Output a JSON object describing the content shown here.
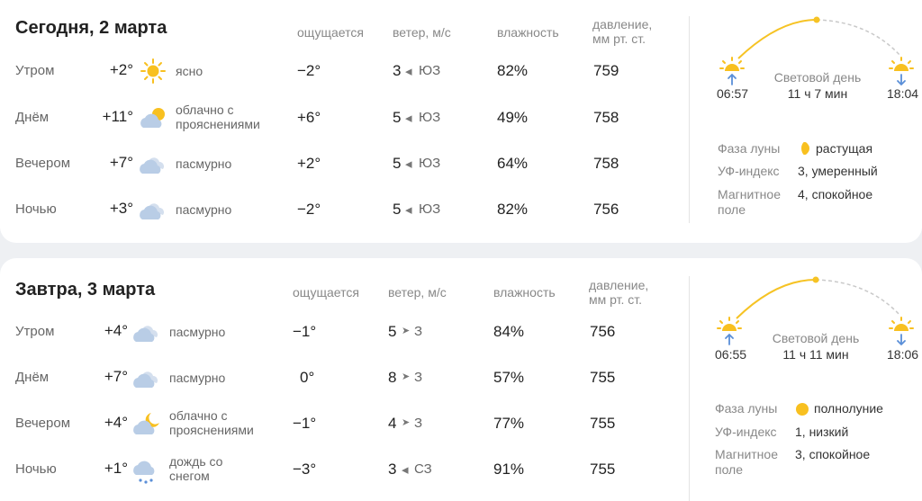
{
  "headers": {
    "feels": "ощущается",
    "wind": "ветер, м/с",
    "humidity": "влажность",
    "pressure_line1": "давление,",
    "pressure_line2": "мм рт. ст."
  },
  "days": [
    {
      "title": "Сегодня, 2 марта",
      "rows": [
        {
          "part": "Утром",
          "temp": "+2°",
          "icon": "sun-icon",
          "cond1": "ясно",
          "cond2": "",
          "feels": "−2°",
          "wind": "3",
          "dir_arrow": "◂",
          "dir": "ЮЗ",
          "humidity": "82%",
          "pressure": "759"
        },
        {
          "part": "Днём",
          "temp": "+11°",
          "icon": "cloud-sun-icon",
          "cond1": "облачно с",
          "cond2": "прояснениями",
          "feels": "+6°",
          "wind": "5",
          "dir_arrow": "◂",
          "dir": "ЮЗ",
          "humidity": "49%",
          "pressure": "758"
        },
        {
          "part": "Вечером",
          "temp": "+7°",
          "icon": "cloud-icon",
          "cond1": "пасмурно",
          "cond2": "",
          "feels": "+2°",
          "wind": "5",
          "dir_arrow": "◂",
          "dir": "ЮЗ",
          "humidity": "64%",
          "pressure": "758"
        },
        {
          "part": "Ночью",
          "temp": "+3°",
          "icon": "cloud-icon",
          "cond1": "пасмурно",
          "cond2": "",
          "feels": "−2°",
          "wind": "5",
          "dir_arrow": "◂",
          "dir": "ЮЗ",
          "humidity": "82%",
          "pressure": "756"
        }
      ],
      "sun": {
        "sunrise": "06:57",
        "sunset": "18:04",
        "daylight_label": "Световой день",
        "daylight": "11 ч 7 мин"
      },
      "info": {
        "moon_label": "Фаза луны",
        "moon": "растущая",
        "moon_icon": "moon-waxing-icon",
        "uv_label": "УФ-индекс",
        "uv": "3, умеренный",
        "mag_label1": "Магнитное",
        "mag_label2": "поле",
        "mag": "4, спокойное"
      }
    },
    {
      "title": "Завтра, 3 марта",
      "rows": [
        {
          "part": "Утром",
          "temp": "+4°",
          "icon": "cloud-icon",
          "cond1": "пасмурно",
          "cond2": "",
          "feels": "−1°",
          "wind": "5",
          "dir_arrow": "➤",
          "dir": "З",
          "humidity": "84%",
          "pressure": "756"
        },
        {
          "part": "Днём",
          "temp": "+7°",
          "icon": "cloud-icon",
          "cond1": "пасмурно",
          "cond2": "",
          "feels": "0°",
          "wind": "8",
          "dir_arrow": "➤",
          "dir": "З",
          "humidity": "57%",
          "pressure": "755"
        },
        {
          "part": "Вечером",
          "temp": "+4°",
          "icon": "cloud-moon-icon",
          "cond1": "облачно с",
          "cond2": "прояснениями",
          "feels": "−1°",
          "wind": "4",
          "dir_arrow": "➤",
          "dir": "З",
          "humidity": "77%",
          "pressure": "755"
        },
        {
          "part": "Ночью",
          "temp": "+1°",
          "icon": "cloud-rain-snow-icon",
          "cond1": "дождь со",
          "cond2": "снегом",
          "feels": "−3°",
          "wind": "3",
          "dir_arrow": "◂",
          "dir": "СЗ",
          "humidity": "91%",
          "pressure": "755"
        }
      ],
      "sun": {
        "sunrise": "06:55",
        "sunset": "18:06",
        "daylight_label": "Световой день",
        "daylight": "11 ч 11 мин"
      },
      "info": {
        "moon_label": "Фаза луны",
        "moon": "полнолуние",
        "moon_icon": "moon-full-icon",
        "uv_label": "УФ-индекс",
        "uv": "1, низкий",
        "mag_label1": "Магнитное",
        "mag_label2": "поле",
        "mag": "3, спокойное"
      }
    }
  ],
  "colors": {
    "sun": "#f8c020",
    "cloud": "#b9cde6",
    "arc": "#f6c324",
    "arc_dash": "#c9c9c9",
    "accent_arrow": "#5a8fd8"
  }
}
